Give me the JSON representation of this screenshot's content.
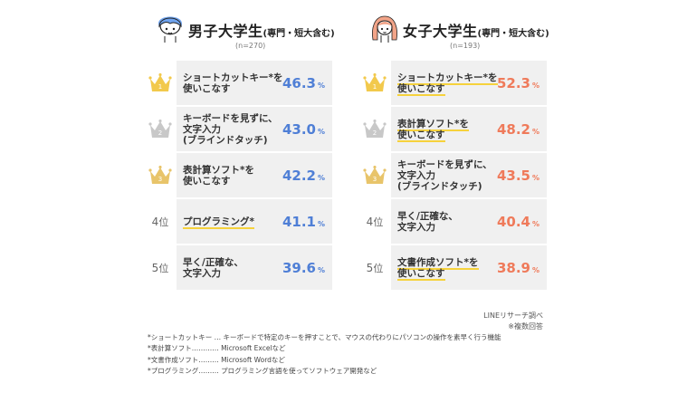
{
  "male": {
    "title": "男子大学生",
    "subtitle": "(専門・短大含む)",
    "n": "(n=270)",
    "rows": [
      {
        "rank": "1",
        "label": "ショートカットキー*を\n使いこなす",
        "highlight": false,
        "value": "46.3",
        "unit": "%"
      },
      {
        "rank": "2",
        "label": "キーボードを見ずに、\n文字入力\n(ブラインドタッチ)",
        "highlight": false,
        "value": "43.0",
        "unit": "%"
      },
      {
        "rank": "3",
        "label": "表計算ソフト*を\n使いこなす",
        "highlight": false,
        "value": "42.2",
        "unit": "%"
      },
      {
        "rank": "4",
        "rank_suffix": "位",
        "label": "プログラミング*",
        "highlight": true,
        "value": "41.1",
        "unit": "%"
      },
      {
        "rank": "5",
        "rank_suffix": "位",
        "label": "早く/正確な、\n文字入力",
        "highlight": false,
        "value": "39.6",
        "unit": "%"
      }
    ]
  },
  "female": {
    "title": "女子大学生",
    "subtitle": "(専門・短大含む)",
    "n": "(n=193)",
    "rows": [
      {
        "rank": "1",
        "label": "ショートカットキー*を\n使いこなす",
        "highlight": true,
        "value": "52.3",
        "unit": "%"
      },
      {
        "rank": "2",
        "label": "表計算ソフト*を\n使いこなす",
        "highlight": true,
        "value": "48.2",
        "unit": "%"
      },
      {
        "rank": "3",
        "label": "キーボードを見ずに、\n文字入力\n(ブラインドタッチ)",
        "highlight": false,
        "value": "43.5",
        "unit": "%"
      },
      {
        "rank": "4",
        "rank_suffix": "位",
        "label": "早く/正確な、\n文字入力",
        "highlight": false,
        "value": "40.4",
        "unit": "%"
      },
      {
        "rank": "5",
        "rank_suffix": "位",
        "label": "文書作成ソフト*を\n使いこなす",
        "highlight": true,
        "value": "38.9",
        "unit": "%"
      }
    ]
  },
  "source": "LINEリサーチ調べ",
  "multi_answer": "※複数回答",
  "notes": [
    "*ショートカットキー … キーボードで特定のキーを押すことで、マウスの代わりにパソコンの操作を素早く行う機能",
    "*表計算ソフト………… Microsoft Excelなど",
    "*文書作成ソフト……… Microsoft Wordなど",
    "*プログラミング……… プログラミング言語を使ってソフトウェア開発など"
  ],
  "colors": {
    "gold": "#f2c94c",
    "silver": "#c8c8c8",
    "bronze": "#e8c46a",
    "male_accent": "#4f7fd6",
    "female_accent": "#ef7a5a",
    "highlight": "#f6d23c",
    "cell_bg": "#f0f0f0"
  }
}
